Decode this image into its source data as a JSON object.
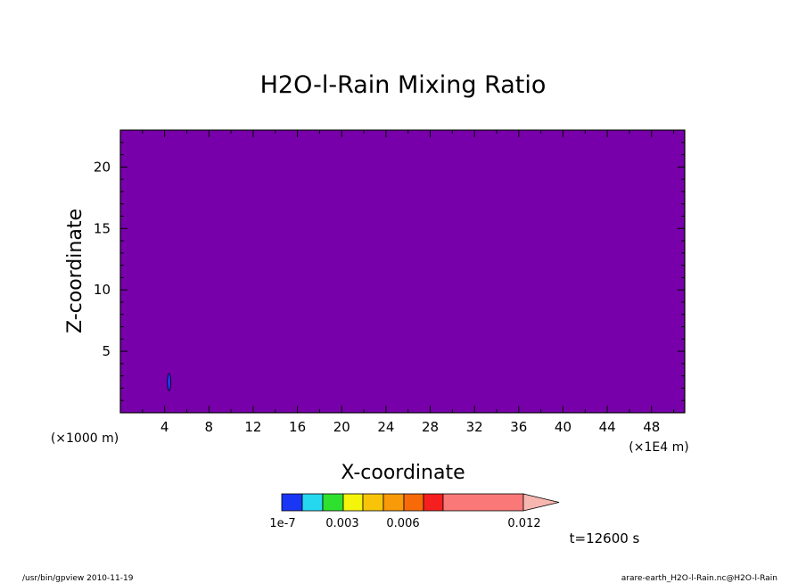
{
  "chart_data": {
    "type": "heatmap",
    "title": "H2O-l-Rain Mixing Ratio",
    "xlabel": "X-coordinate",
    "ylabel": "Z-coordinate",
    "x_unit": "(×1E4 m)",
    "y_unit": "(×1000 m)",
    "xlim": [
      0,
      51
    ],
    "ylim": [
      0,
      23
    ],
    "x_ticks": [
      4,
      8,
      12,
      16,
      20,
      24,
      28,
      32,
      36,
      40,
      44,
      48
    ],
    "y_ticks": [
      5,
      10,
      15,
      20
    ],
    "background_fill": "#7800aa",
    "features": [
      {
        "x": 4.4,
        "z": 2.5,
        "dx": 0.15,
        "dz": 1.4,
        "color": "#1f3cff"
      }
    ],
    "colorbar": {
      "colors": [
        "#1a36f5",
        "#25d8f0",
        "#2ee12e",
        "#f5f50c",
        "#f8c40a",
        "#f99a08",
        "#f86a08",
        "#f51f1f",
        "#fa7878"
      ],
      "extend_color": "#f8b6b0",
      "tick_labels": [
        "1e-7",
        "0.003",
        "0.006",
        "0.012"
      ]
    },
    "time_label": "t=12600 s"
  },
  "footer": {
    "left": "/usr/bin/gpview   2010-11-19",
    "right": "arare-earth_H2O-l-Rain.nc@H2O-l-Rain"
  }
}
